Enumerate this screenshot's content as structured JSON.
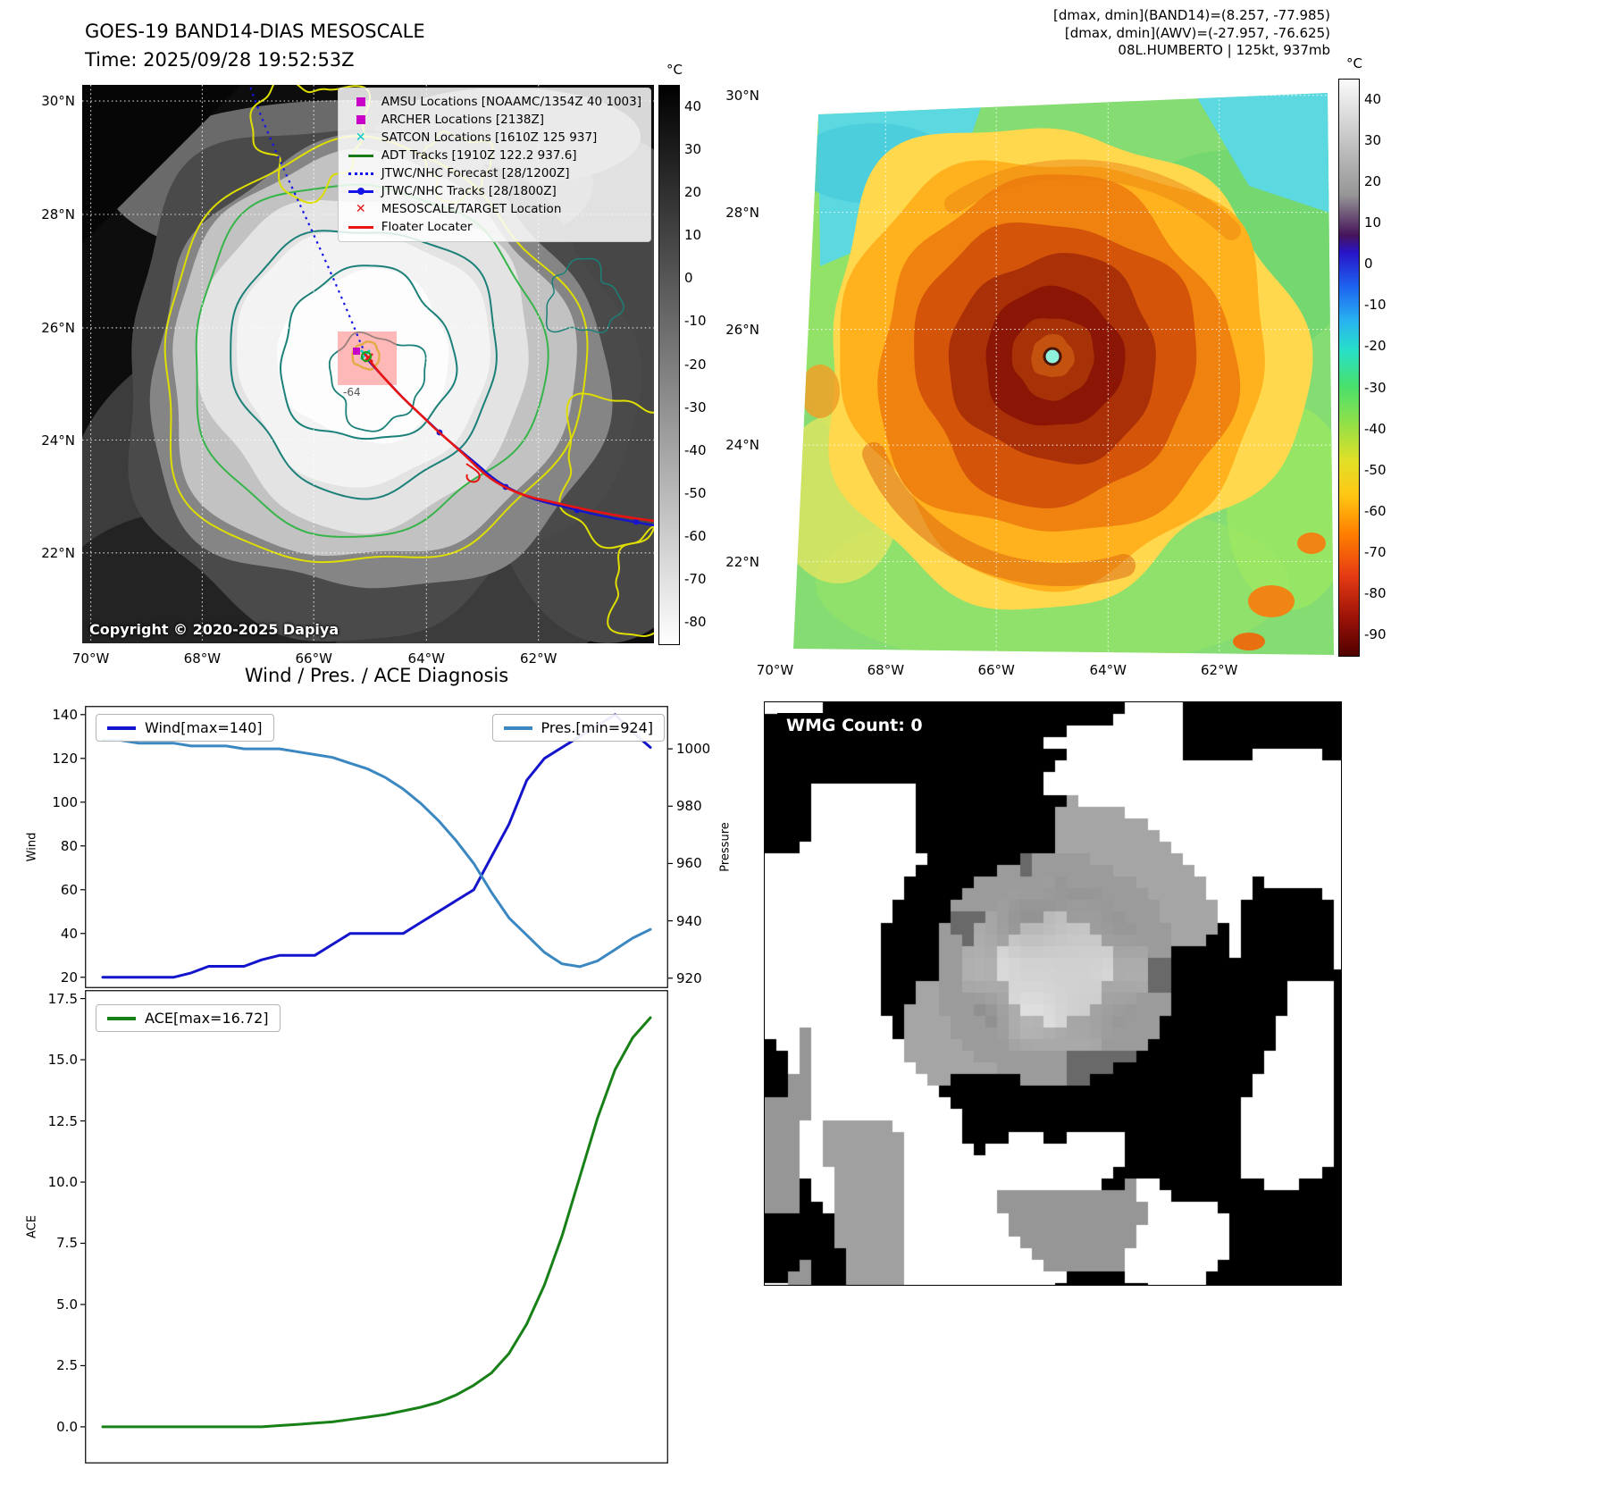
{
  "band14_panel": {
    "title": "GOES-19 BAND14-DIAS MESOSCALE",
    "time_line": "Time: 2025/09/28 19:52:53Z",
    "copyright": "Copyright © 2020-2025 Dapiya",
    "contour_label": "-64",
    "lat_ticks": [
      "30°N",
      "28°N",
      "26°N",
      "24°N",
      "22°N"
    ],
    "lon_ticks": [
      "70°W",
      "68°W",
      "66°W",
      "64°W",
      "62°W"
    ],
    "colorbar": {
      "unit": "°C",
      "range": [
        45,
        -85
      ],
      "ticks": [
        40,
        30,
        20,
        10,
        0,
        -10,
        -20,
        -30,
        -40,
        -50,
        -60,
        -70,
        -80
      ],
      "stops": [
        {
          "p": 0,
          "c": "#000000"
        },
        {
          "p": 0.5,
          "c": "#7d7d7d"
        },
        {
          "p": 1,
          "c": "#ffffff"
        }
      ]
    },
    "legend": [
      {
        "label": "AMSU Locations [NOAAMC/1354Z 40 1003]",
        "marker": "square",
        "color": "#c800c8"
      },
      {
        "label": "ARCHER Locations [2138Z]",
        "marker": "square",
        "color": "#c800c8"
      },
      {
        "label": "SATCON Locations [1610Z 125 937]",
        "marker": "x",
        "color": "#00c8c8"
      },
      {
        "label": "ADT Tracks [1910Z 122.2 937.6]",
        "marker": "line",
        "color": "#1a7a1a"
      },
      {
        "label": "JTWC/NHC Forecast [28/1200Z]",
        "marker": "dotted-line",
        "color": "#1414e6"
      },
      {
        "label": "JTWC/NHC Tracks [28/1800Z]",
        "marker": "line-marker",
        "color": "#1414e6"
      },
      {
        "label": "MESOSCALE/TARGET Location",
        "marker": "x",
        "color": "#e61414"
      },
      {
        "label": "Floater Locater",
        "marker": "line",
        "color": "#e61414"
      }
    ]
  },
  "awv_panel": {
    "info_line1": "[dmax, dmin](BAND14)=(8.257, -77.985)",
    "info_line2": "[dmax, dmin](AWV)=(-27.957, -76.625)",
    "info_line3": "08L.HUMBERTO | 125kt, 937mb",
    "lat_ticks": [
      "30°N",
      "28°N",
      "26°N",
      "24°N",
      "22°N"
    ],
    "lon_ticks": [
      "70°W",
      "68°W",
      "66°W",
      "64°W",
      "62°W"
    ],
    "colorbar": {
      "unit": "°C",
      "range": [
        45,
        -95
      ],
      "ticks": [
        40,
        30,
        20,
        10,
        0,
        -10,
        -20,
        -30,
        -40,
        -50,
        -60,
        -70,
        -80,
        -90
      ],
      "stops": [
        {
          "p": 0,
          "c": "#fafafa"
        },
        {
          "p": 0.2,
          "c": "#969696"
        },
        {
          "p": 0.27,
          "c": "#46145a"
        },
        {
          "p": 0.3,
          "c": "#2814c8"
        },
        {
          "p": 0.36,
          "c": "#1e64f0"
        },
        {
          "p": 0.42,
          "c": "#28b4f0"
        },
        {
          "p": 0.47,
          "c": "#28e0c8"
        },
        {
          "p": 0.53,
          "c": "#46e06e"
        },
        {
          "p": 0.6,
          "c": "#96e046"
        },
        {
          "p": 0.66,
          "c": "#e0e028"
        },
        {
          "p": 0.72,
          "c": "#ffc814"
        },
        {
          "p": 0.79,
          "c": "#ff7d00"
        },
        {
          "p": 0.86,
          "c": "#e63c14"
        },
        {
          "p": 0.93,
          "c": "#a01408"
        },
        {
          "p": 1,
          "c": "#500000"
        }
      ]
    }
  },
  "wmg_panel": {
    "count_label": "WMG Count: 0"
  },
  "chart_data": [
    {
      "type": "line",
      "title": "Wind / Pres. / ACE Diagnosis",
      "ylabel": "Wind",
      "ylabel_right": "Pressure",
      "ylim": [
        15,
        144
      ],
      "ylim_right": [
        916.5,
        1015
      ],
      "yticks": [
        20,
        40,
        60,
        80,
        100,
        120,
        140
      ],
      "yticks_right": [
        920,
        940,
        960,
        980,
        1000
      ],
      "grid": false,
      "legend_position": [
        "upper-left",
        "upper-right"
      ],
      "series": [
        {
          "name": "Wind[max=140]",
          "color": "#1414cc",
          "axis": "left",
          "values": [
            20,
            20,
            20,
            20,
            20,
            22,
            25,
            25,
            25,
            28,
            30,
            30,
            30,
            35,
            40,
            40,
            40,
            40,
            45,
            50,
            55,
            60,
            75,
            90,
            110,
            120,
            125,
            130,
            135,
            140,
            132,
            125
          ]
        },
        {
          "name": "Pres.[min=924]",
          "color": "#3a87c2",
          "axis": "right",
          "values": [
            1003,
            1003,
            1002,
            1002,
            1002,
            1001,
            1001,
            1001,
            1000,
            1000,
            1000,
            999,
            998,
            997,
            995,
            993,
            990,
            986,
            981,
            975,
            968,
            960,
            950,
            941,
            935,
            929,
            925,
            924,
            926,
            930,
            934,
            937
          ]
        }
      ]
    },
    {
      "type": "line",
      "ylabel": "ACE",
      "ylim": [
        -1.5,
        17.85
      ],
      "yticks": [
        0,
        2.5,
        5,
        7.5,
        10,
        12.5,
        15,
        17.5
      ],
      "ytick_labels": [
        "0.0",
        "2.5",
        "5.0",
        "7.5",
        "10.0",
        "12.5",
        "15.0",
        "17.5"
      ],
      "grid": false,
      "legend_position": [
        "upper-left"
      ],
      "series": [
        {
          "name": "ACE[max=16.72]",
          "color": "#178017",
          "axis": "left",
          "values": [
            0,
            0,
            0,
            0,
            0,
            0,
            0,
            0,
            0,
            0,
            0.05,
            0.1,
            0.15,
            0.2,
            0.3,
            0.4,
            0.5,
            0.65,
            0.8,
            1,
            1.3,
            1.7,
            2.2,
            3,
            4.2,
            5.8,
            7.8,
            10.2,
            12.6,
            14.6,
            15.9,
            16.72
          ]
        }
      ]
    }
  ]
}
